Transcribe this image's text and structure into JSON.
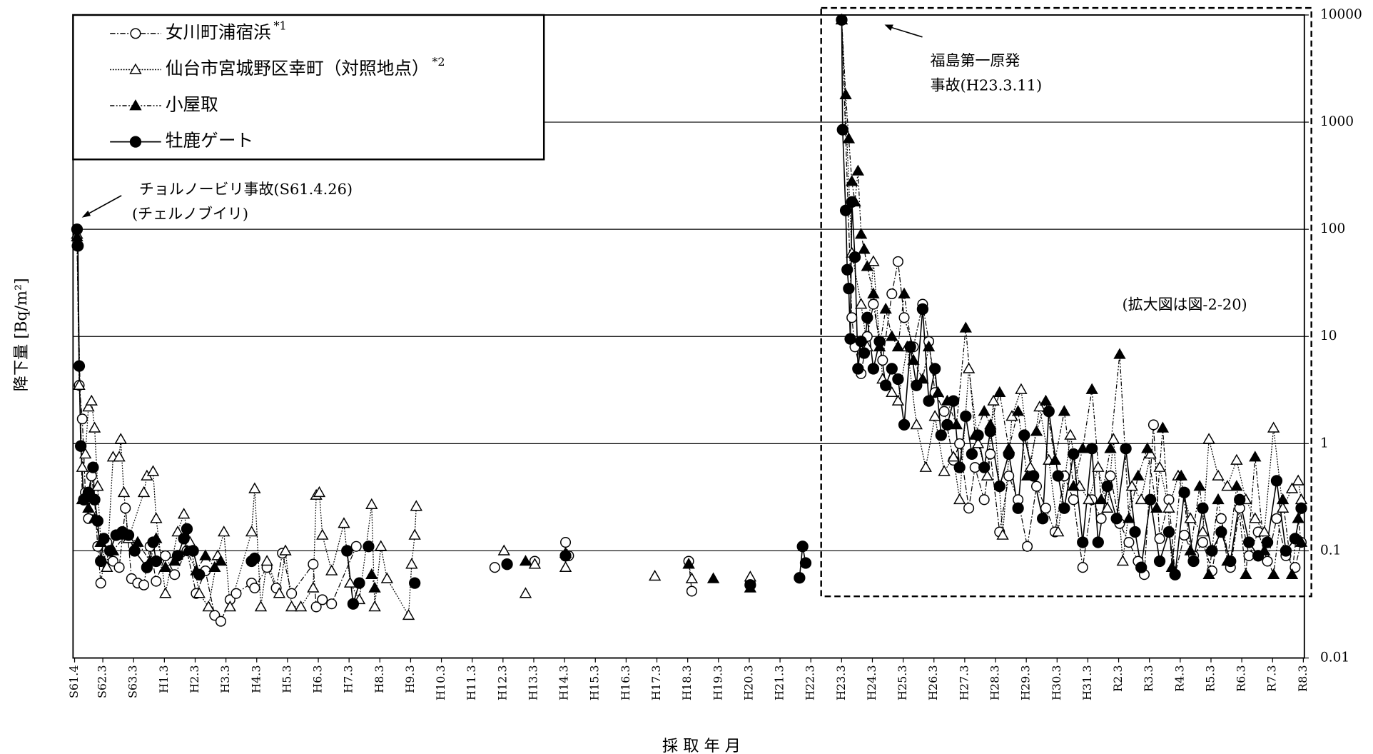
{
  "chart_data": {
    "type": "line",
    "y_label": "降下量 [Bq/m²]",
    "x_label": "採 取 年 月",
    "yscale": "log",
    "grid": true,
    "xlim": [
      1986.2,
      2026.2
    ],
    "ylim": [
      0.01,
      10000
    ],
    "yticks": [
      10000,
      1000,
      100,
      10,
      1,
      0.1,
      0.01
    ],
    "xticks": [
      {
        "value": 1986.25,
        "label": "S61.4"
      },
      {
        "value": 1987.167,
        "label": "S62.3"
      },
      {
        "value": 1988.167,
        "label": "S63.3"
      },
      {
        "value": 1989.167,
        "label": "H1.3"
      },
      {
        "value": 1990.167,
        "label": "H2.3"
      },
      {
        "value": 1991.167,
        "label": "H3.3"
      },
      {
        "value": 1992.167,
        "label": "H4.3"
      },
      {
        "value": 1993.167,
        "label": "H5.3"
      },
      {
        "value": 1994.167,
        "label": "H6.3"
      },
      {
        "value": 1995.167,
        "label": "H7.3"
      },
      {
        "value": 1996.167,
        "label": "H8.3"
      },
      {
        "value": 1997.167,
        "label": "H9.3"
      },
      {
        "value": 1998.167,
        "label": "H10.3"
      },
      {
        "value": 1999.167,
        "label": "H11.3"
      },
      {
        "value": 2000.167,
        "label": "H12.3"
      },
      {
        "value": 2001.167,
        "label": "H13.3"
      },
      {
        "value": 2002.167,
        "label": "H14.3"
      },
      {
        "value": 2003.167,
        "label": "H15.3"
      },
      {
        "value": 2004.167,
        "label": "H16.3"
      },
      {
        "value": 2005.167,
        "label": "H17.3"
      },
      {
        "value": 2006.167,
        "label": "H18.3"
      },
      {
        "value": 2007.167,
        "label": "H19.3"
      },
      {
        "value": 2008.167,
        "label": "H20.3"
      },
      {
        "value": 2009.167,
        "label": "H21.3"
      },
      {
        "value": 2010.167,
        "label": "H22.3"
      },
      {
        "value": 2011.167,
        "label": "H23.3"
      },
      {
        "value": 2012.167,
        "label": "H24.3"
      },
      {
        "value": 2013.167,
        "label": "H25.3"
      },
      {
        "value": 2014.167,
        "label": "H26.3"
      },
      {
        "value": 2015.167,
        "label": "H27.3"
      },
      {
        "value": 2016.167,
        "label": "H28.3"
      },
      {
        "value": 2017.167,
        "label": "H29.3"
      },
      {
        "value": 2018.167,
        "label": "H30.3"
      },
      {
        "value": 2019.167,
        "label": "H31.3"
      },
      {
        "value": 2020.167,
        "label": "R2.3"
      },
      {
        "value": 2021.167,
        "label": "R3.3"
      },
      {
        "value": 2022.167,
        "label": "R4.3"
      },
      {
        "value": 2023.167,
        "label": "R5.3"
      },
      {
        "value": 2024.167,
        "label": "R6.3"
      },
      {
        "value": 2025.167,
        "label": "R7.3"
      },
      {
        "value": 2026.167,
        "label": "R8.3"
      }
    ],
    "annotations": [
      "チョルノービリ事故(S61.4.26)",
      "(チェルノブイリ)",
      "福島第一原発",
      "事故(H23.3.11)",
      "(拡大図は図-2-20)"
    ],
    "series": [
      {
        "name": "女川町浦宿浜",
        "note": "*1",
        "color": "#000000",
        "marker": "circle-open",
        "line_style": "dashdot",
        "x": [
          1986.33,
          1986.4,
          1986.5,
          1986.6,
          1986.7,
          1986.8,
          1986.9,
          1987.0,
          1987.1,
          1987.3,
          1987.5,
          1987.7,
          1987.9,
          1988.1,
          1988.3,
          1988.5,
          1988.7,
          1988.9,
          1989.2,
          1989.5,
          1989.9,
          1990.2,
          1990.5,
          1990.8,
          1991.0,
          1991.3,
          1991.5,
          1992.0,
          1992.1,
          1992.5,
          1992.8,
          1993.0,
          1993.3,
          1994.0,
          1994.1,
          1994.3,
          1994.6,
          1995.4,
          null,
          1999.9,
          null,
          2001.2,
          null,
          2002.2,
          2002.3,
          null,
          2006.2,
          2006.3,
          null,
          2008.2,
          null,
          2011.17,
          2011.5,
          2011.6,
          2011.8,
          2012.0,
          2012.2,
          2012.5,
          2012.8,
          2013.0,
          2013.2,
          2013.5,
          2013.8,
          2014.0,
          2014.2,
          2014.5,
          2014.8,
          2015.0,
          2015.3,
          2015.5,
          2015.8,
          2016.0,
          2016.3,
          2016.6,
          2016.9,
          2017.2,
          2017.5,
          2017.8,
          2018.1,
          2018.4,
          2018.7,
          2019.0,
          2019.3,
          2019.6,
          2019.9,
          2020.2,
          2020.5,
          2020.8,
          2021.0,
          2021.3,
          2021.5,
          2021.8,
          2022.0,
          2022.3,
          2022.6,
          2022.9,
          2023.2,
          2023.5,
          2023.8,
          2024.1,
          2024.4,
          2024.7,
          2025.0,
          2025.3,
          2025.6,
          2025.9,
          2026.1
        ],
        "values": [
          70,
          3.5,
          1.7,
          0.35,
          0.2,
          0.5,
          0.3,
          0.11,
          0.05,
          0.12,
          0.08,
          0.07,
          0.25,
          0.055,
          0.05,
          0.048,
          0.11,
          0.052,
          0.09,
          0.06,
          0.1,
          0.04,
          0.065,
          0.025,
          0.022,
          0.035,
          0.04,
          0.05,
          0.045,
          0.07,
          0.045,
          0.095,
          0.04,
          0.075,
          0.03,
          0.035,
          0.032,
          0.11,
          null,
          0.07,
          null,
          0.08,
          null,
          0.12,
          0.09,
          null,
          0.08,
          0.042,
          null,
          0.05,
          null,
          9000,
          15,
          8,
          4.5,
          10,
          20,
          6,
          25,
          50,
          15,
          8,
          20,
          9,
          3,
          2,
          0.7,
          1,
          0.25,
          0.6,
          0.3,
          0.8,
          0.15,
          0.5,
          0.3,
          0.11,
          0.4,
          0.25,
          0.15,
          0.5,
          0.3,
          0.07,
          0.3,
          0.2,
          0.5,
          0.18,
          0.12,
          0.08,
          0.06,
          1.5,
          0.13,
          0.3,
          0.06,
          0.14,
          0.09,
          0.12,
          0.065,
          0.2,
          0.07,
          0.25,
          0.09,
          0.15,
          0.08,
          0.2,
          0.09,
          0.07,
          0.12
        ]
      },
      {
        "name": "仙台市宮城野区幸町（対照地点）",
        "note": "*2",
        "color": "#000000",
        "marker": "triangle-open",
        "line_style": "dotted",
        "x": [
          1986.33,
          1986.4,
          1986.5,
          1986.6,
          1986.7,
          1986.8,
          1986.9,
          1987.0,
          1987.1,
          1987.3,
          1987.5,
          1987.7,
          1987.75,
          1987.85,
          1988.0,
          1988.5,
          1988.6,
          1988.8,
          1988.9,
          1989.2,
          1989.6,
          1989.8,
          1990.0,
          1990.3,
          1990.6,
          1990.9,
          1991.1,
          1991.3,
          1992.0,
          1992.1,
          1992.3,
          1992.5,
          1992.9,
          1993.1,
          1993.3,
          1993.6,
          1994.0,
          1994.1,
          1994.2,
          1994.3,
          1994.6,
          1995.0,
          1995.2,
          1995.5,
          1995.9,
          1996.0,
          1996.2,
          1996.4,
          1997.1,
          1997.2,
          1997.3,
          1997.35,
          null,
          2000.2,
          null,
          2000.9,
          null,
          2001.2,
          null,
          2002.2,
          null,
          2005.1,
          null,
          2006.2,
          2006.3,
          null,
          2008.2,
          null,
          2011.17,
          2011.5,
          2011.8,
          2012.0,
          2012.2,
          2012.5,
          2012.8,
          2013.0,
          2013.3,
          2013.6,
          2013.9,
          2014.2,
          2014.5,
          2014.8,
          2015.0,
          2015.3,
          2015.6,
          2015.9,
          2016.1,
          2016.4,
          2016.7,
          2017.0,
          2017.3,
          2017.6,
          2017.9,
          2018.2,
          2018.6,
          2018.9,
          2019.2,
          2019.5,
          2019.8,
          2020.0,
          2020.3,
          2020.6,
          2020.9,
          2021.2,
          2021.5,
          2021.8,
          2022.1,
          2022.5,
          2022.9,
          2023.1,
          2023.4,
          2023.7,
          2024.0,
          2024.3,
          2024.6,
          2024.9,
          2025.2,
          2025.5,
          2025.8,
          2026.0,
          2026.1
        ],
        "values": [
          90,
          3.5,
          0.6,
          0.8,
          2.2,
          2.5,
          1.4,
          0.4,
          0.12,
          0.07,
          0.75,
          0.75,
          1.1,
          0.35,
          0.13,
          0.35,
          0.5,
          0.55,
          0.2,
          0.04,
          0.15,
          0.22,
          0.12,
          0.04,
          0.03,
          0.09,
          0.15,
          0.03,
          0.15,
          0.38,
          0.03,
          0.08,
          0.04,
          0.1,
          0.03,
          0.03,
          0.045,
          0.33,
          0.35,
          0.14,
          0.065,
          0.18,
          0.05,
          0.035,
          0.27,
          0.03,
          0.11,
          0.055,
          0.025,
          0.075,
          0.14,
          0.26,
          null,
          0.1,
          null,
          0.04,
          null,
          0.075,
          null,
          0.07,
          null,
          0.058,
          null,
          0.075,
          0.055,
          null,
          0.057,
          null,
          9000,
          60,
          20,
          8,
          50,
          4,
          3,
          2.5,
          8,
          1.5,
          0.6,
          1.8,
          0.55,
          0.75,
          0.3,
          5,
          1,
          0.5,
          2.5,
          0.14,
          1.8,
          3.2,
          0.6,
          2.2,
          0.7,
          0.15,
          1.2,
          0.4,
          0.3,
          0.6,
          0.25,
          1.1,
          0.08,
          0.4,
          0.3,
          0.8,
          0.6,
          0.25,
          0.5,
          0.2,
          0.15,
          1.1,
          0.5,
          0.4,
          0.7,
          0.3,
          0.2,
          0.15,
          1.4,
          0.25,
          0.38,
          0.45,
          0.3
        ]
      },
      {
        "name": "小屋取",
        "color": "#000000",
        "marker": "triangle-filled",
        "line_style": "dashdotdot",
        "x": [
          1986.33,
          1986.5,
          1986.7,
          1986.9,
          1987.1,
          1987.5,
          1987.9,
          1988.3,
          1988.7,
          1988.9,
          1989.2,
          1989.5,
          1989.9,
          1990.2,
          1990.5,
          1990.8,
          1991.0,
          null,
          1995.9,
          1996.0,
          null,
          2000.9,
          null,
          2002.2,
          null,
          2006.2,
          null,
          2007.0,
          null,
          2008.2,
          null,
          2011.17,
          2011.3,
          2011.4,
          2011.5,
          2011.6,
          2011.7,
          2011.8,
          2011.9,
          2012.0,
          2012.2,
          2012.4,
          2012.6,
          2012.8,
          2013.0,
          2013.2,
          2013.5,
          2013.8,
          2014.0,
          2014.3,
          2014.6,
          2014.9,
          2015.2,
          2015.5,
          2015.8,
          2016.0,
          2016.3,
          2016.6,
          2016.9,
          2017.2,
          2017.5,
          2017.8,
          2018.1,
          2018.4,
          2018.7,
          2019.0,
          2019.3,
          2019.6,
          2019.9,
          2020.2,
          2020.5,
          2020.8,
          2021.1,
          2021.4,
          2021.6,
          2021.9,
          2022.2,
          2022.5,
          2022.8,
          2023.1,
          2023.4,
          2023.7,
          2024.0,
          2024.3,
          2024.6,
          2024.9,
          2025.2,
          2025.5,
          2025.8,
          2026.0,
          2026.1
        ],
        "values": [
          85,
          0.3,
          0.25,
          0.2,
          0.12,
          0.1,
          0.14,
          0.12,
          0.08,
          0.13,
          0.07,
          0.08,
          0.1,
          0.065,
          0.09,
          0.07,
          0.08,
          null,
          0.06,
          0.045,
          null,
          0.08,
          null,
          0.095,
          null,
          0.075,
          null,
          0.055,
          null,
          0.045,
          null,
          9000,
          1800,
          700,
          280,
          180,
          350,
          90,
          65,
          45,
          25,
          8,
          18,
          10,
          8,
          25,
          6,
          4,
          8,
          3,
          2.5,
          1.5,
          12,
          1.2,
          2,
          1.5,
          3,
          0.9,
          2,
          0.5,
          1.3,
          2.5,
          0.7,
          2,
          0.4,
          0.9,
          3.2,
          0.3,
          0.9,
          6.8,
          0.2,
          0.5,
          0.9,
          0.25,
          1.4,
          0.07,
          0.5,
          0.1,
          0.4,
          0.06,
          0.3,
          0.08,
          0.4,
          0.06,
          0.75,
          0.1,
          0.06,
          0.3,
          0.06,
          0.2,
          0.12
        ]
      },
      {
        "name": "牡鹿ゲート",
        "color": "#000000",
        "marker": "circle-filled",
        "line_style": "solid",
        "x": [
          1986.33,
          1986.36,
          1986.4,
          1986.45,
          1986.55,
          1986.7,
          1986.85,
          1986.9,
          1987.0,
          1987.1,
          1987.2,
          1987.4,
          1987.6,
          1987.8,
          1988.0,
          1988.2,
          1988.6,
          1988.8,
          1988.9,
          1989.6,
          1989.8,
          1989.9,
          1990.1,
          1990.3,
          null,
          1992.0,
          1992.1,
          null,
          1995.1,
          1995.3,
          1995.5,
          null,
          1995.8,
          null,
          1997.3,
          null,
          2000.3,
          null,
          2002.2,
          null,
          2008.2,
          null,
          2009.8,
          2009.9,
          2010.0,
          null,
          2011.17,
          2011.2,
          2011.3,
          2011.35,
          2011.4,
          2011.45,
          2011.5,
          2011.6,
          2011.7,
          2011.8,
          2011.9,
          2012.0,
          2012.2,
          2012.4,
          2012.6,
          2012.8,
          2013.0,
          2013.2,
          2013.4,
          2013.6,
          2013.8,
          2014.0,
          2014.2,
          2014.4,
          2014.6,
          2014.8,
          2015.0,
          2015.2,
          2015.4,
          2015.6,
          2015.8,
          2016.0,
          2016.3,
          2016.6,
          2016.9,
          2017.1,
          2017.4,
          2017.7,
          2017.9,
          2018.2,
          2018.4,
          2018.7,
          2019.0,
          2019.3,
          2019.5,
          2019.8,
          2020.1,
          2020.4,
          2020.7,
          2020.9,
          2021.2,
          2021.5,
          2021.8,
          2022.0,
          2022.3,
          2022.6,
          2022.9,
          2023.2,
          2023.5,
          2023.8,
          2024.1,
          2024.4,
          2024.7,
          2025.0,
          2025.3,
          2025.6,
          2025.9,
          2026.1
        ],
        "values": [
          100,
          70,
          5.3,
          0.95,
          0.3,
          0.35,
          0.6,
          0.3,
          0.19,
          0.08,
          0.13,
          0.1,
          0.14,
          0.15,
          0.14,
          0.1,
          0.07,
          0.12,
          0.08,
          0.09,
          0.13,
          0.16,
          0.1,
          0.06,
          null,
          0.08,
          0.085,
          null,
          0.1,
          0.032,
          0.05,
          null,
          0.11,
          null,
          0.05,
          null,
          0.075,
          null,
          0.09,
          null,
          0.048,
          null,
          0.056,
          0.11,
          0.077,
          null,
          9000,
          850,
          150,
          42,
          28,
          9.5,
          180,
          55,
          5,
          9,
          7,
          15,
          5,
          9,
          3.5,
          5,
          4,
          1.5,
          8,
          3.5,
          18,
          2.5,
          5,
          1.2,
          1.5,
          2.5,
          0.6,
          1.8,
          0.8,
          1.2,
          0.6,
          1.3,
          0.4,
          0.8,
          0.25,
          1.2,
          0.5,
          0.2,
          2,
          0.5,
          0.25,
          0.8,
          0.12,
          0.9,
          0.12,
          0.4,
          0.2,
          0.9,
          0.15,
          0.07,
          0.3,
          0.08,
          0.15,
          0.06,
          0.35,
          0.08,
          0.25,
          0.1,
          0.15,
          0.08,
          0.3,
          0.12,
          0.09,
          0.12,
          0.45,
          0.1,
          0.13,
          0.25
        ]
      }
    ]
  }
}
